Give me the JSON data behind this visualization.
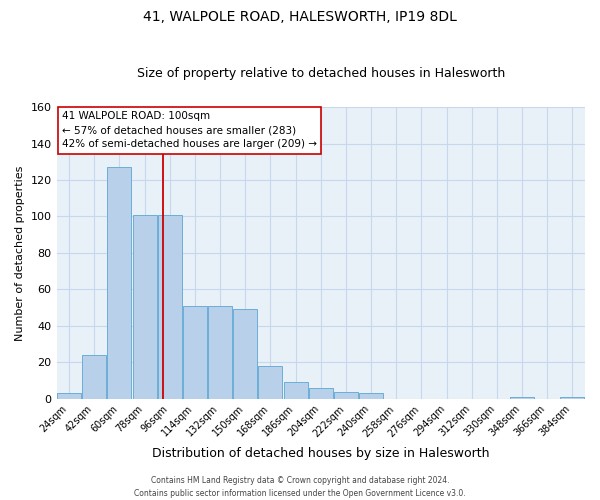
{
  "title": "41, WALPOLE ROAD, HALESWORTH, IP19 8DL",
  "subtitle": "Size of property relative to detached houses in Halesworth",
  "xlabel": "Distribution of detached houses by size in Halesworth",
  "ylabel": "Number of detached properties",
  "bin_labels": [
    "24sqm",
    "42sqm",
    "60sqm",
    "78sqm",
    "96sqm",
    "114sqm",
    "132sqm",
    "150sqm",
    "168sqm",
    "186sqm",
    "204sqm",
    "222sqm",
    "240sqm",
    "258sqm",
    "276sqm",
    "294sqm",
    "312sqm",
    "330sqm",
    "348sqm",
    "366sqm",
    "384sqm"
  ],
  "bin_left_edges": [
    24,
    42,
    60,
    78,
    96,
    114,
    132,
    150,
    168,
    186,
    204,
    222,
    240,
    258,
    276,
    294,
    312,
    330,
    348,
    366,
    384
  ],
  "bin_width": 18,
  "bar_heights": [
    3,
    24,
    127,
    101,
    101,
    51,
    51,
    49,
    18,
    9,
    6,
    4,
    3,
    0,
    0,
    0,
    0,
    0,
    1,
    0,
    1
  ],
  "bar_color": "#b8d0ea",
  "bar_edge_color": "#6aaed6",
  "vline_x": 100,
  "vline_color": "#cc0000",
  "ylim": [
    0,
    160
  ],
  "yticks": [
    0,
    20,
    40,
    60,
    80,
    100,
    120,
    140,
    160
  ],
  "xlim_left": 24,
  "xlim_right": 402,
  "annotation_title": "41 WALPOLE ROAD: 100sqm",
  "annotation_line1": "← 57% of detached houses are smaller (283)",
  "annotation_line2": "42% of semi-detached houses are larger (209) →",
  "annotation_box_facecolor": "#ffffff",
  "annotation_box_edgecolor": "#cc0000",
  "footer_line1": "Contains HM Land Registry data © Crown copyright and database right 2024.",
  "footer_line2": "Contains public sector information licensed under the Open Government Licence v3.0.",
  "grid_color": "#c8d8ec",
  "plot_bg_color": "#e8f0f8",
  "title_fontsize": 10,
  "subtitle_fontsize": 9,
  "ylabel_fontsize": 8,
  "xlabel_fontsize": 9,
  "ytick_fontsize": 8,
  "xtick_fontsize": 7
}
